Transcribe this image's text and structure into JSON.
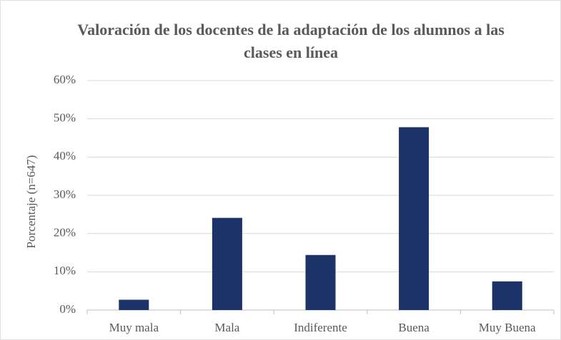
{
  "chart_data": {
    "type": "bar",
    "title": "Valoración de los docentes de la adaptación de los alumnos a las clases en línea",
    "y_label": "Porcentaje (n=647)",
    "categories": [
      "Muy mala",
      "Mala",
      "Indiferente",
      "Buena",
      "Muy Buena"
    ],
    "values": [
      2.7,
      24.1,
      14.4,
      47.8,
      7.5
    ],
    "color": "#1b3369",
    "ylim": [
      0,
      60
    ],
    "yticks": [
      {
        "value": 0,
        "label": "0%"
      },
      {
        "value": 10,
        "label": "10%"
      },
      {
        "value": 20,
        "label": "20%"
      },
      {
        "value": 30,
        "label": "30%"
      },
      {
        "value": 40,
        "label": "40%"
      },
      {
        "value": 50,
        "label": "50%"
      },
      {
        "value": 60,
        "label": "60%"
      }
    ],
    "grid": true
  }
}
